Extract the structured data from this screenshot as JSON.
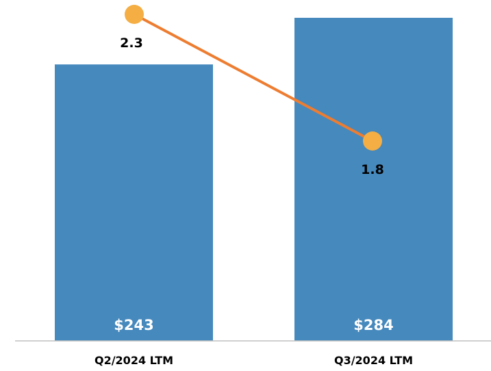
{
  "chart_data": {
    "type": "bar",
    "categories": [
      "Q2/2024 LTM",
      "Q3/2024 LTM"
    ],
    "series": [
      {
        "type": "bar",
        "values": [
          243,
          284
        ],
        "labels": [
          "$243",
          "$284"
        ],
        "color": "#4589BD"
      },
      {
        "type": "line",
        "values": [
          2.3,
          1.8
        ],
        "labels": [
          "2.3",
          "1.8"
        ],
        "line_color": "#ED7D31",
        "marker_color": "#F4AE44"
      }
    ],
    "axis_color": "#BFBFBF",
    "grid": false
  }
}
